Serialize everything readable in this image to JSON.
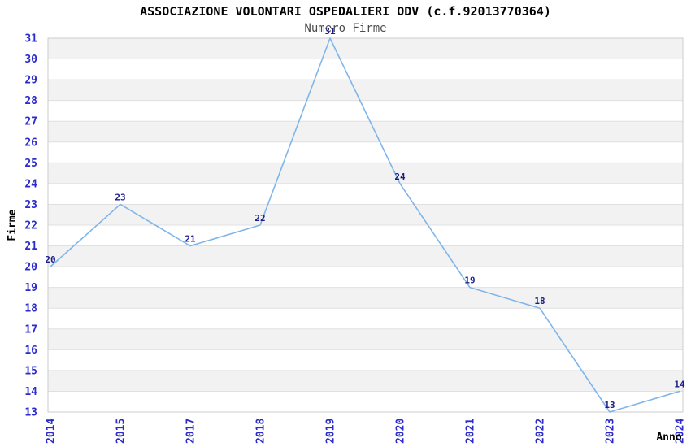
{
  "chart_data": {
    "type": "line",
    "title": "ASSOCIAZIONE VOLONTARI OSPEDALIERI ODV (c.f.92013770364)",
    "subtitle": "Numero Firme",
    "xlabel": "Anno",
    "ylabel": "Firme",
    "categories": [
      "2014",
      "2015",
      "2017",
      "2018",
      "2019",
      "2020",
      "2021",
      "2022",
      "2023",
      "2024"
    ],
    "values": [
      20,
      23,
      21,
      22,
      31,
      24,
      19,
      18,
      13,
      14
    ],
    "ylim": [
      13,
      31
    ],
    "ytick_step": 1,
    "xtick_rotation": -90,
    "grid": "alternating-horizontal-bands",
    "legend": "none",
    "data_labels_visible": true,
    "markers": "none",
    "colors": {
      "line": "#7fb6ea",
      "tick_label": "#2b2bcc",
      "data_label": "#1c1c86",
      "band": "#f2f2f2",
      "gridline": "#e0e0e0",
      "plot_border": "#cccccc",
      "plot_background": "#ffffff",
      "title": "#000000",
      "subtitle": "#4d4d4d"
    }
  }
}
